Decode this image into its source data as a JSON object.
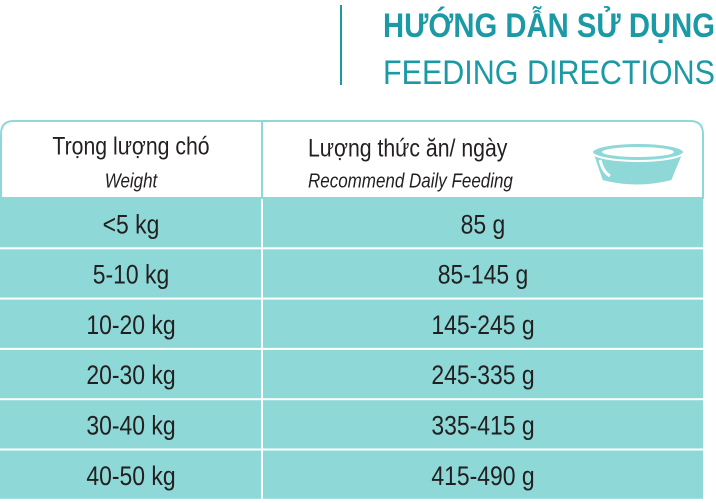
{
  "header": {
    "title_vi": "HƯỚNG DẪN SỬ DỤNG",
    "title_en": "FEEDING DIRECTIONS"
  },
  "table": {
    "columns": [
      {
        "label_vi": "Trọng lượng chó",
        "label_en": "Weight"
      },
      {
        "label_vi": "Lượng thức ăn/ ngày",
        "label_en": "Recommend Daily Feeding"
      }
    ],
    "rows": [
      [
        "<5 kg",
        "85 g"
      ],
      [
        "5-10 kg",
        "85-145 g"
      ],
      [
        "10-20 kg",
        "145-245 g"
      ],
      [
        "20-30 kg",
        "245-335 g"
      ],
      [
        "30-40 kg",
        "335-415 g"
      ],
      [
        "40-50 kg",
        "415-490 g"
      ]
    ]
  }
}
